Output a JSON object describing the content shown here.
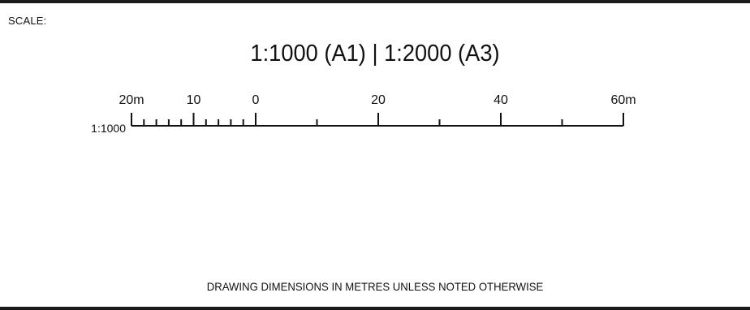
{
  "header": {
    "label": "SCALE:",
    "ratio_text": "1:1000 (A1) | 1:2000 (A3)"
  },
  "scale_bar": {
    "ratio": "1:1000",
    "labels": [
      {
        "value": -20,
        "text": "20m"
      },
      {
        "value": -10,
        "text": "10"
      },
      {
        "value": 0,
        "text": "0"
      },
      {
        "value": 20,
        "text": "20"
      },
      {
        "value": 40,
        "text": "40"
      },
      {
        "value": 60,
        "text": "60m"
      }
    ],
    "major_ticks": [
      -20,
      -10,
      0,
      20,
      40,
      60
    ],
    "minor_ticks": [
      -18,
      -16,
      -14,
      -12,
      -8,
      -6,
      -4,
      -2,
      10,
      30,
      50
    ],
    "range": [
      -20,
      60
    ]
  },
  "footer": {
    "note": "DRAWING DIMENSIONS IN METRES UNLESS NOTED OTHERWISE"
  },
  "colors": {
    "ink": "#111111",
    "border": "#1a1a1a",
    "background": "#ffffff"
  }
}
